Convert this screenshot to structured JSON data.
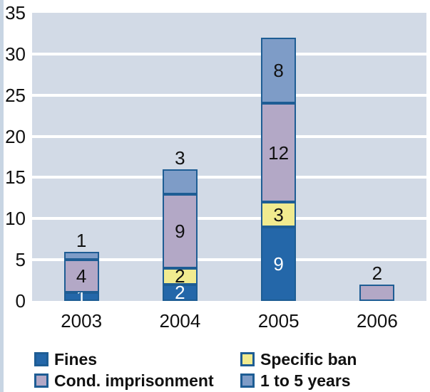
{
  "chart_data": {
    "type": "bar",
    "stacked": true,
    "title": "",
    "xlabel": "",
    "ylabel": "",
    "categories": [
      "2003",
      "2004",
      "2005",
      "2006"
    ],
    "series": [
      {
        "name": "Fines",
        "color": "#2467a9",
        "label_color": "#ffffff",
        "values": [
          1,
          2,
          9,
          0
        ]
      },
      {
        "name": "Specific ban",
        "color": "#f1eb8f",
        "label_color": "#111111",
        "values": [
          0,
          2,
          3,
          0
        ]
      },
      {
        "name": "Cond. imprisonment",
        "color": "#b3a8c6",
        "label_color": "#111111",
        "values": [
          4,
          9,
          12,
          2
        ]
      },
      {
        "name": "1 to 5 years",
        "color": "#7e9cc7",
        "label_color": "#111111",
        "values": [
          1,
          3,
          8,
          0
        ]
      }
    ],
    "bar_totals": [
      6,
      16,
      32,
      2
    ],
    "top_label_outside": [
      true,
      true,
      false,
      true
    ],
    "y_ticks": [
      0,
      5,
      10,
      15,
      20,
      25,
      30,
      35
    ],
    "ylim": [
      0,
      35
    ],
    "grid": "horizontal-white-lines",
    "legend_position": "bottom-two-columns",
    "colors": {
      "segment_border": "#1e5d94",
      "plot_background": "#d2dae6",
      "gridline": "#ffffff",
      "page_edge_strip": "#c8d5e3",
      "axis_text": "#111111"
    }
  }
}
